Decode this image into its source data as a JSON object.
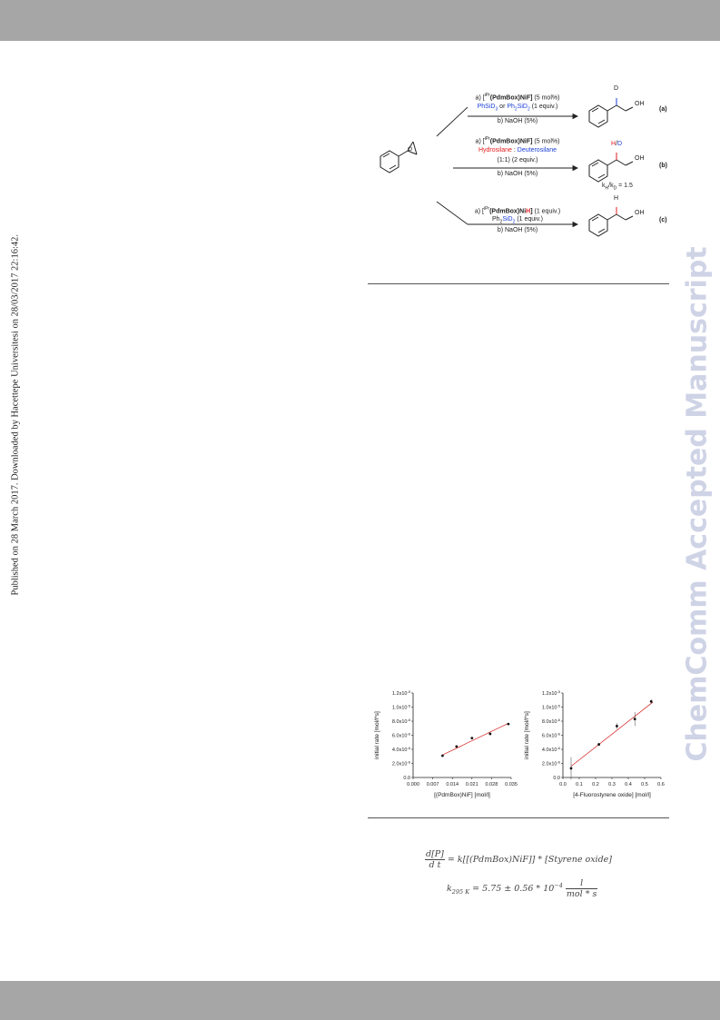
{
  "page": {
    "side_note": "Published on 28 March 2017. Downloaded by Hacettepe Universitesi on 28/03/2017 22:16:42.",
    "watermark": "ChemComm Accepted Manuscript"
  },
  "scheme": {
    "rxn_a": {
      "line1_pre": "a) [",
      "line1_sup": "iPr",
      "line1_cat": "(PdmBox)NiF]",
      "line1_post": "(5 mol%)",
      "line2_a": "PhSiD",
      "line2_a_sub": "3",
      "line2_or": " or ",
      "line2_b": "Ph",
      "line2_b_sub1": "2",
      "line2_b_mid": "SiD",
      "line2_b_sub2": "2",
      "line2_equiv": " (1 equiv.)",
      "line3": "b) NaOH (5%)",
      "label": "(a)",
      "product_label": "D"
    },
    "rxn_b": {
      "line1_pre": "a) [",
      "line1_sup": "iPr",
      "line1_cat": "(PdmBox)NiF]",
      "line1_post": "(5 mol%)",
      "line2_red": "Hydrosilane",
      "line2_sep": " : ",
      "line2_blue": "Deuterosilane",
      "line3_ratio": "(1:1)",
      "line3_equiv": " (2 equiv.)",
      "line4": "b) NaOH (5%)",
      "label": "(b)",
      "product_label_h": "H",
      "product_label_slash": "/",
      "product_label_d": "D",
      "kie_text": "k",
      "kie_h": "H",
      "kie_slash": "/k",
      "kie_d": "D",
      "kie_value": " = 1.5"
    },
    "rxn_c": {
      "line1_pre": "a) [",
      "line1_sup": "iPr",
      "line1_cat": "(PdmBox)Ni",
      "line1_h": "H",
      "line1_close": "]",
      "line1_post": "(1 equiv.)",
      "line2_a": "Ph",
      "line2_sub1": "2",
      "line2_b": "SiD",
      "line2_sub2": "2",
      "line2_equiv": " (1 equiv.)",
      "line3": "b) NaOH (5%)",
      "label": "(c)",
      "product_label": "H"
    },
    "oh": "OH",
    "epoxide_o": "O"
  },
  "chart_data": [
    {
      "type": "scatter",
      "xlabel": "[(PdmBox)NiF] [mol/l]",
      "ylabel": "initial rate [mol/l*s]",
      "xticks": [
        "0.000",
        "0.007",
        "0.014",
        "0.021",
        "0.028",
        "0.035"
      ],
      "yticks": [
        "0.0",
        "2.0x10-6",
        "4.0x10-6",
        "6.0x10-6",
        "8.0x10-6",
        "1.0x10-5",
        "1.2x10-5"
      ],
      "xlim": [
        0,
        0.035
      ],
      "ylim": [
        0,
        1.2e-05
      ],
      "x": [
        0.0105,
        0.0155,
        0.021,
        0.0275,
        0.034
      ],
      "y": [
        3.1e-06,
        4.4e-06,
        5.6e-06,
        6.2e-06,
        7.6e-06
      ],
      "fit_line": {
        "x": [
          0.0105,
          0.034
        ],
        "y": [
          3.2e-06,
          7.7e-06
        ],
        "color": "#d62020"
      },
      "grid": false
    },
    {
      "type": "scatter",
      "xlabel": "[4-Fluorostyrene oxide] [mol/l]",
      "ylabel": "initial rate [mol/l*s]",
      "xticks": [
        "0.0",
        "0.1",
        "0.2",
        "0.3",
        "0.4",
        "0.5",
        "0.6"
      ],
      "yticks": [
        "0.0",
        "2.0x10-6",
        "4.0x10-6",
        "6.0x10-6",
        "8.0x10-6",
        "1.0x10-5",
        "1.2x10-5"
      ],
      "xlim": [
        0,
        0.6
      ],
      "ylim": [
        0,
        1.2e-05
      ],
      "x": [
        0.05,
        0.22,
        0.33,
        0.44,
        0.54
      ],
      "y": [
        1.3e-06,
        4.7e-06,
        7.3e-06,
        8.3e-06,
        1.08e-05
      ],
      "yerr": [
        1.6e-06,
        2e-07,
        4e-07,
        1e-06,
        3e-07
      ],
      "fit_line": {
        "x": [
          0.05,
          0.55
        ],
        "y": [
          1.6e-06,
          1.07e-05
        ],
        "color": "#d62020"
      },
      "grid": false
    }
  ],
  "equations": {
    "rate_num": "d[P]",
    "rate_den": "d t",
    "rate_rhs": " = k[[(PdmBox)NiF]] * [Styrene oxide]",
    "k_label": "k",
    "k_sub": "295 K",
    "k_value": " = 5.75 ± 0.56 * 10",
    "k_exp": "−4",
    "k_unit_num": "l",
    "k_unit_den": "mol * s"
  }
}
